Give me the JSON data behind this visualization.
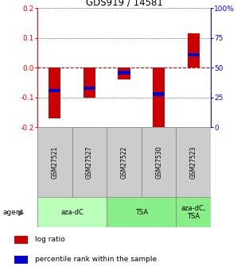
{
  "title": "GDS919 / 14581",
  "samples": [
    "GSM27521",
    "GSM27527",
    "GSM27522",
    "GSM27530",
    "GSM27523"
  ],
  "log_ratios": [
    -0.17,
    -0.1,
    -0.04,
    -0.2,
    0.115
  ],
  "percentile_ranks": [
    0.31,
    0.33,
    0.46,
    0.28,
    0.61
  ],
  "ylim": [
    -0.2,
    0.2
  ],
  "yticks_left": [
    -0.2,
    -0.1,
    0.0,
    0.1,
    0.2
  ],
  "yticks_right": [
    0,
    25,
    50,
    75,
    100
  ],
  "bar_color": "#cc0000",
  "pct_color": "#0000cc",
  "agent_groups": [
    {
      "label": "aza-dC",
      "start": 0,
      "end": 2,
      "color": "#bbffbb"
    },
    {
      "label": "TSA",
      "start": 2,
      "end": 4,
      "color": "#88ee88"
    },
    {
      "label": "aza-dC,\nTSA",
      "start": 4,
      "end": 5,
      "color": "#88ee88"
    }
  ],
  "agent_label": "agent",
  "legend_log_ratio": "log ratio",
  "legend_pct": "percentile rank within the sample",
  "grid_color": "#000000",
  "zero_line_color": "#cc0000",
  "background_color": "#ffffff",
  "sample_box_color": "#cccccc"
}
